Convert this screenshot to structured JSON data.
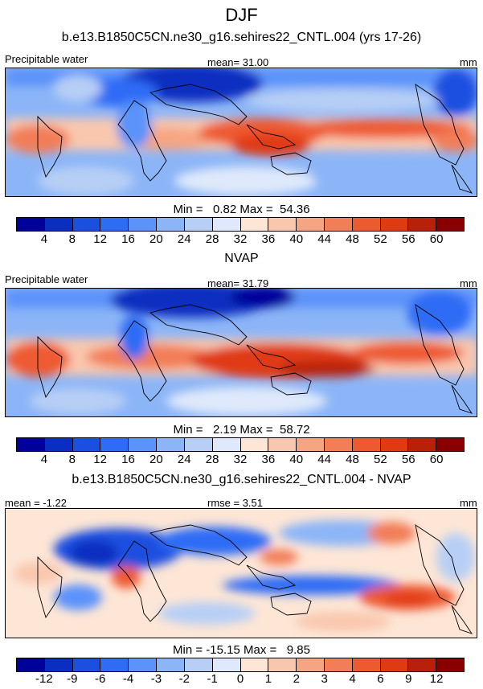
{
  "page_title": "DJF",
  "panels": [
    {
      "id": "model",
      "subtitle": "b.e13.B1850C5CN.ne30_g16.sehires22_CNTL.004 (yrs 17-26)",
      "left_label": "Precipitable water",
      "center_label": "mean=  31.00",
      "units": "mm",
      "minmax": "Min =   0.82 Max =  54.36",
      "colorbar": {
        "colors": [
          "#00009a",
          "#0a2fc0",
          "#1a4fe0",
          "#2f6cf5",
          "#5b93fa",
          "#8cb5f7",
          "#b7cff5",
          "#dfe9fb",
          "#fde6d6",
          "#f9c7ae",
          "#f6a582",
          "#f27e58",
          "#ee5a30",
          "#e03a12",
          "#b8200a",
          "#8a0000"
        ],
        "ticks": [
          "4",
          "8",
          "12",
          "16",
          "20",
          "24",
          "28",
          "32",
          "36",
          "40",
          "44",
          "48",
          "52",
          "56",
          "60"
        ]
      }
    },
    {
      "id": "obs",
      "subtitle": "NVAP",
      "left_label": "Precipitable water",
      "center_label": "mean=  31.79",
      "units": "mm",
      "minmax": "Min =   2.19 Max =  58.72",
      "colorbar": {
        "colors": [
          "#00009a",
          "#0a2fc0",
          "#1a4fe0",
          "#2f6cf5",
          "#5b93fa",
          "#8cb5f7",
          "#b7cff5",
          "#dfe9fb",
          "#fde6d6",
          "#f9c7ae",
          "#f6a582",
          "#f27e58",
          "#ee5a30",
          "#e03a12",
          "#b8200a",
          "#8a0000"
        ],
        "ticks": [
          "4",
          "8",
          "12",
          "16",
          "20",
          "24",
          "28",
          "32",
          "36",
          "40",
          "44",
          "48",
          "52",
          "56",
          "60"
        ]
      }
    },
    {
      "id": "diff",
      "subtitle": "b.e13.B1850C5CN.ne30_g16.sehires22_CNTL.004 - NVAP",
      "left_label": "mean =  -1.22",
      "center_label": "rmse =   3.51",
      "units": "mm",
      "minmax": "Min = -15.15 Max =   9.85",
      "colorbar": {
        "colors": [
          "#00009a",
          "#0a2fc0",
          "#1a4fe0",
          "#2f6cf5",
          "#5b93fa",
          "#8cb5f7",
          "#b7cff5",
          "#dfe9fb",
          "#fde6d6",
          "#f9c7ae",
          "#f6a582",
          "#f27e58",
          "#ee5a30",
          "#e03a12",
          "#b8200a",
          "#8a0000"
        ],
        "ticks": [
          "-12",
          "-9",
          "-6",
          "-4",
          "-3",
          "-2",
          "-1",
          "0",
          "1",
          "2",
          "3",
          "4",
          "6",
          "9",
          "12"
        ]
      }
    }
  ],
  "chart_data": [
    {
      "type": "heatmap",
      "title": "DJF",
      "subtitle": "b.e13.B1850C5CN.ne30_g16.sehires22_CNTL.004 (yrs 17-26)",
      "variable": "Precipitable water",
      "units": "mm",
      "mean": 31.0,
      "min": 0.82,
      "max": 54.36,
      "contour_levels": [
        4,
        8,
        12,
        16,
        20,
        24,
        28,
        32,
        36,
        40,
        44,
        48,
        52,
        56,
        60
      ]
    },
    {
      "type": "heatmap",
      "subtitle": "NVAP",
      "variable": "Precipitable water",
      "units": "mm",
      "mean": 31.79,
      "min": 2.19,
      "max": 58.72,
      "contour_levels": [
        4,
        8,
        12,
        16,
        20,
        24,
        28,
        32,
        36,
        40,
        44,
        48,
        52,
        56,
        60
      ]
    },
    {
      "type": "heatmap",
      "subtitle": "b.e13.B1850C5CN.ne30_g16.sehires22_CNTL.004 - NVAP",
      "units": "mm",
      "mean": -1.22,
      "rmse": 3.51,
      "min": -15.15,
      "max": 9.85,
      "contour_levels": [
        -12,
        -9,
        -6,
        -4,
        -3,
        -2,
        -1,
        0,
        1,
        2,
        3,
        4,
        6,
        9,
        12
      ]
    }
  ]
}
